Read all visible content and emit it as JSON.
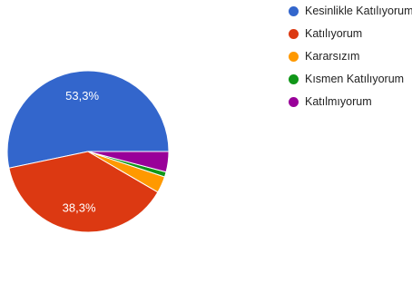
{
  "chart_data": {
    "type": "pie",
    "categories": [
      "Kesinlikle Katılıyorum",
      "Katılıyorum",
      "Kararsızım",
      "Kısmen Katılıyorum",
      "Katılmıyorum"
    ],
    "values": [
      53.3,
      38.3,
      3.3,
      1.0,
      4.1
    ],
    "colors": [
      "#3366cc",
      "#dc3912",
      "#ff9900",
      "#109618",
      "#990099"
    ],
    "data_labels": [
      "53,3%",
      "38,3%",
      "",
      "",
      ""
    ],
    "legend_position": "right"
  }
}
